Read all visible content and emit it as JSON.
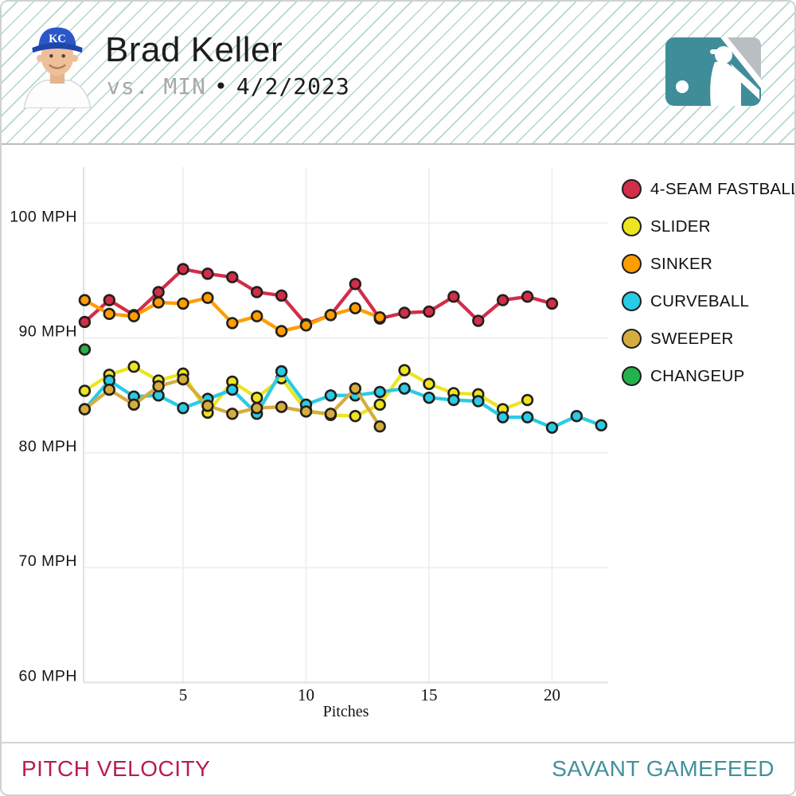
{
  "header": {
    "player_name": "Brad Keller",
    "opponent": "vs. MIN",
    "separator": "•",
    "date": "4/2/2023",
    "cap_text": "KC"
  },
  "footer": {
    "left_label": "PITCH VELOCITY",
    "right_label": "SAVANT GAMEFEED"
  },
  "colors": {
    "footer_left": "#b81d4b",
    "footer_right": "#43909c",
    "header_stripe": "#b3d6d1",
    "grid": "#f0f0f0",
    "axis": "#e2e2e2",
    "dot_outline": "#241f1a",
    "mlb_logo_teal": "#3f8d99",
    "mlb_logo_gray": "#b9bec2"
  },
  "chart_data": {
    "type": "line",
    "title": "PITCH VELOCITY",
    "xlabel": "Pitches",
    "ylabel_unit": "MPH",
    "x_meaning": "nth pitch of that pitch type",
    "xticks": [
      5,
      10,
      15,
      20
    ],
    "yticks": [
      100,
      90,
      80,
      70,
      60
    ],
    "ytick_suffix": " MPH",
    "xlim": [
      1,
      22.3
    ],
    "ylim": [
      60,
      104.9
    ],
    "grid": true,
    "legend_position": "right",
    "series": [
      {
        "name": "4-SEAM FASTBALL",
        "color": "#d22d49",
        "values": [
          91.4,
          93.3,
          92.0,
          94.0,
          96.0,
          95.6,
          95.3,
          94.0,
          93.7,
          91.2,
          92.0,
          94.7,
          91.7,
          92.2,
          92.3,
          93.6,
          91.5,
          93.3,
          93.6,
          93.0
        ]
      },
      {
        "name": "SLIDER",
        "color": "#ece51f",
        "values": [
          85.4,
          86.8,
          87.5,
          86.3,
          86.9,
          83.5,
          86.2,
          84.8,
          86.5,
          83.7,
          83.3,
          83.2,
          84.2,
          87.2,
          86.0,
          85.2,
          85.1,
          83.8,
          84.6
        ]
      },
      {
        "name": "SINKER",
        "color": "#fe9d00",
        "values": [
          93.3,
          92.1,
          91.9,
          93.1,
          93.0,
          93.5,
          91.3,
          91.9,
          90.6,
          91.1,
          92.0,
          92.6,
          91.8
        ]
      },
      {
        "name": "CURVEBALL",
        "color": "#29cbe5",
        "values": [
          83.8,
          86.3,
          84.9,
          85.0,
          83.9,
          84.7,
          85.5,
          83.4,
          87.1,
          84.2,
          85.0,
          85.0,
          85.3,
          85.6,
          84.8,
          84.6,
          84.5,
          83.1,
          83.1,
          82.2,
          83.2,
          82.4
        ]
      },
      {
        "name": "SWEEPER",
        "color": "#d5ad3e",
        "values": [
          83.8,
          85.5,
          84.2,
          85.8,
          86.4,
          84.1,
          83.4,
          83.9,
          84.0,
          83.6,
          83.4,
          85.6,
          82.3
        ]
      },
      {
        "name": "CHANGEUP",
        "color": "#23b24b",
        "values": [
          89.0
        ]
      }
    ]
  }
}
